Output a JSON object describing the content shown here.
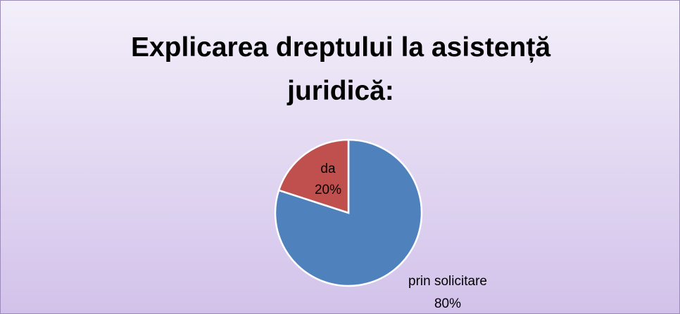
{
  "chart_data": {
    "type": "pie",
    "title": "Explicarea dreptului la asistență juridică:",
    "categories": [
      "prin solicitare",
      "da"
    ],
    "values": [
      80,
      20
    ],
    "value_labels": [
      "80%",
      "20%"
    ],
    "colors": [
      "#4f81bd",
      "#c0504d"
    ]
  }
}
